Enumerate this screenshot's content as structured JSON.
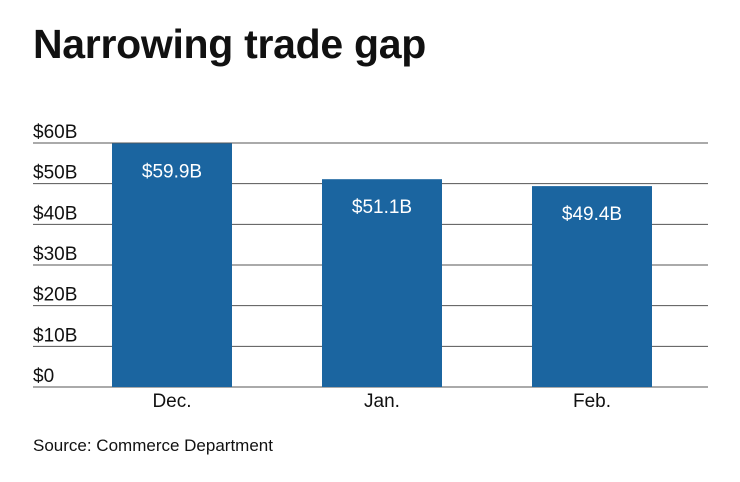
{
  "chart_data": {
    "type": "bar",
    "title": "Narrowing trade gap",
    "categories": [
      "Dec.",
      "Jan.",
      "Feb."
    ],
    "values": [
      59.9,
      51.1,
      49.4
    ],
    "data_labels": [
      "$59.9B",
      "$51.1B",
      "$49.4B"
    ],
    "ylim": [
      0,
      60
    ],
    "yticks": [
      0,
      10,
      20,
      30,
      40,
      50,
      60
    ],
    "ytick_labels": [
      "$0",
      "$10B",
      "$20B",
      "$30B",
      "$40B",
      "$50B",
      "$60B"
    ],
    "xlabel": "",
    "ylabel": "",
    "grid": true,
    "source": "Source: Commerce Department",
    "colors": {
      "bar": "#1b65a0",
      "grid": "#555555",
      "text": "#111111",
      "label_text": "#ffffff"
    }
  }
}
